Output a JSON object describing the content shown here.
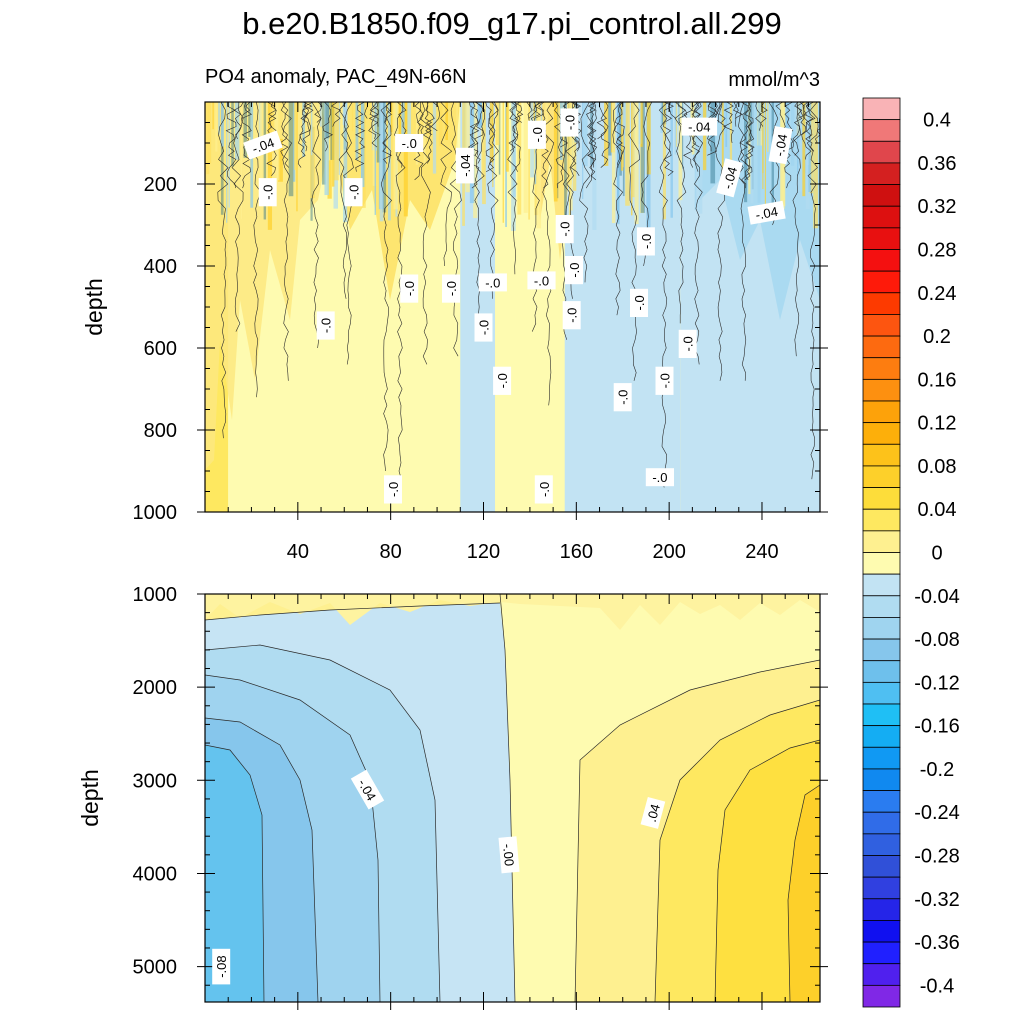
{
  "chart_data": [
    {
      "type": "heatmap",
      "panel": "upper",
      "title": "b.e20.B1850.f09_g17.pi_control.all.299",
      "subtitle_left": "PO4 anomaly, PAC_49N-66N",
      "subtitle_right": "mmol/m^3",
      "xlabel": "",
      "ylabel": "depth",
      "xlim": [
        0,
        265
      ],
      "ylim": [
        1000,
        0
      ],
      "x_ticks": [
        40,
        80,
        120,
        160,
        200,
        240
      ],
      "x_tick_labels": [
        "40",
        "80",
        "120",
        "160",
        "200",
        "240"
      ],
      "y_ticks": [
        200,
        400,
        600,
        800,
        1000
      ],
      "y_tick_labels": [
        "200",
        "400",
        "600",
        "800",
        "1000"
      ],
      "regions": [
        {
          "x_range": [
            0,
            10
          ],
          "anomaly": 0.02
        },
        {
          "x_range": [
            10,
            60
          ],
          "anomaly": 0.01
        },
        {
          "x_range": [
            60,
            110
          ],
          "anomaly": 0.005
        },
        {
          "x_range": [
            110,
            125
          ],
          "anomaly": -0.01
        },
        {
          "x_range": [
            125,
            155
          ],
          "anomaly": 0.005
        },
        {
          "x_range": [
            155,
            205
          ],
          "anomaly": -0.01
        },
        {
          "x_range": [
            205,
            265
          ],
          "anomaly": -0.02
        }
      ],
      "contour_labels": [
        {
          "text": "-.04",
          "x": 25,
          "depth": 105,
          "angle": -20
        },
        {
          "text": "-.0",
          "x": 88,
          "depth": 100,
          "angle": 0
        },
        {
          "text": "-.0",
          "x": 143,
          "depth": 80,
          "angle": -90
        },
        {
          "text": "-.0",
          "x": 157,
          "depth": 50,
          "angle": -90
        },
        {
          "text": "-.04",
          "x": 213,
          "depth": 60,
          "angle": 0
        },
        {
          "text": "-.04",
          "x": 248,
          "depth": 105,
          "angle": -80
        },
        {
          "text": "-.04",
          "x": 112,
          "depth": 155,
          "angle": -90
        },
        {
          "text": "-.04",
          "x": 226,
          "depth": 185,
          "angle": -75
        },
        {
          "text": "-.04",
          "x": 242,
          "depth": 270,
          "angle": -10
        },
        {
          "text": "-.0",
          "x": 27,
          "depth": 220,
          "angle": -90
        },
        {
          "text": "-.0",
          "x": 64,
          "depth": 220,
          "angle": -90
        },
        {
          "text": "-.0",
          "x": 155,
          "depth": 310,
          "angle": -90
        },
        {
          "text": "-.0",
          "x": 190,
          "depth": 340,
          "angle": -90
        },
        {
          "text": "-.0",
          "x": 88,
          "depth": 455,
          "angle": -90
        },
        {
          "text": "-.0",
          "x": 106,
          "depth": 455,
          "angle": -90
        },
        {
          "text": "-.0",
          "x": 124,
          "depth": 440,
          "angle": 0
        },
        {
          "text": "-.0",
          "x": 145,
          "depth": 435,
          "angle": 0
        },
        {
          "text": "-.0",
          "x": 159,
          "depth": 410,
          "angle": -90
        },
        {
          "text": "-.0",
          "x": 187,
          "depth": 490,
          "angle": -90
        },
        {
          "text": "-.0",
          "x": 52,
          "depth": 545,
          "angle": -90
        },
        {
          "text": "-.0",
          "x": 120,
          "depth": 550,
          "angle": -90
        },
        {
          "text": "-.0",
          "x": 158,
          "depth": 520,
          "angle": -90
        },
        {
          "text": "-.0",
          "x": 208,
          "depth": 590,
          "angle": -90
        },
        {
          "text": "-.0",
          "x": 128,
          "depth": 680,
          "angle": -90
        },
        {
          "text": "-.0",
          "x": 198,
          "depth": 680,
          "angle": -90
        },
        {
          "text": "-.0",
          "x": 180,
          "depth": 720,
          "angle": -90
        },
        {
          "text": "-.0",
          "x": 81,
          "depth": 945,
          "angle": -90
        },
        {
          "text": "-.0",
          "x": 146,
          "depth": 945,
          "angle": -90
        },
        {
          "text": "-.0",
          "x": 196,
          "depth": 915,
          "angle": 0
        }
      ]
    },
    {
      "type": "heatmap",
      "panel": "lower",
      "xlabel": "",
      "ylabel": "depth",
      "xlim": [
        0,
        265
      ],
      "ylim": [
        5380,
        1000
      ],
      "x_ticks": [
        40,
        80,
        120,
        160,
        200,
        240
      ],
      "y_ticks": [
        1000,
        2000,
        3000,
        4000,
        5000
      ],
      "y_tick_labels": [
        "1000",
        "2000",
        "3000",
        "4000",
        "5000"
      ],
      "field": "zonal gradient: about -0.09 at x=0 rising through 0 near x=130 to about +0.09 at x=265, weaker near 1000 m",
      "contour_labels": [
        {
          "text": "-.04",
          "x": 70,
          "depth": 3100,
          "angle": 60
        },
        {
          "text": "-.00",
          "x": 131,
          "depth": 3800,
          "angle": 85
        },
        {
          "text": ".04",
          "x": 193,
          "depth": 3350,
          "angle": -75
        },
        {
          "text": "-.08",
          "x": 7,
          "depth": 5000,
          "angle": -90
        }
      ]
    },
    {
      "type": "colorbar",
      "levels": [
        -0.42,
        -0.4,
        -0.38,
        -0.36,
        -0.34,
        -0.32,
        -0.3,
        -0.28,
        -0.26,
        -0.24,
        -0.22,
        -0.2,
        -0.18,
        -0.16,
        -0.14,
        -0.12,
        -0.1,
        -0.08,
        -0.06,
        -0.04,
        -0.02,
        0,
        0.02,
        0.04,
        0.06,
        0.08,
        0.1,
        0.12,
        0.14,
        0.16,
        0.18,
        0.2,
        0.22,
        0.24,
        0.26,
        0.28,
        0.3,
        0.32,
        0.34,
        0.36,
        0.38,
        0.4,
        0.42
      ],
      "tick_labels": [
        "0.4",
        "0.36",
        "0.32",
        "0.28",
        "0.24",
        "0.2",
        "0.16",
        "0.12",
        "0.08",
        "0.04",
        "0",
        "-0.04",
        "-0.08",
        "-0.12",
        "-0.16",
        "-0.2",
        "-0.24",
        "-0.28",
        "-0.32",
        "-0.36",
        "-0.4"
      ],
      "tick_values": [
        0.4,
        0.36,
        0.32,
        0.28,
        0.24,
        0.2,
        0.16,
        0.12,
        0.08,
        0.04,
        0,
        -0.04,
        -0.08,
        -0.12,
        -0.16,
        -0.2,
        -0.24,
        -0.28,
        -0.32,
        -0.36,
        -0.4
      ],
      "colors_top_to_bottom": [
        "#f9b3b6",
        "#f07878",
        "#e0464c",
        "#d42020",
        "#cf1010",
        "#dd1010",
        "#e81010",
        "#f41010",
        "#fe1a0a",
        "#fd3a00",
        "#fd5510",
        "#fd6a10",
        "#fd7d10",
        "#fd9010",
        "#fda20a",
        "#fdaf0a",
        "#fdc21a",
        "#fdd02a",
        "#fddd3a",
        "#fee860",
        "#fef090",
        "#fefbb0",
        "#c2e3f3",
        "#b0dcf1",
        "#9fd4ef",
        "#86c6ec",
        "#6ec0ec",
        "#4fbff2",
        "#1fbff5",
        "#14adf3",
        "#1099f3",
        "#1089f0",
        "#2a7cf0",
        "#306ce8",
        "#3060e0",
        "#3050d8",
        "#3040e0",
        "#2525e8",
        "#1010f0",
        "#2020ff",
        "#5020ee",
        "#8028e6"
      ]
    }
  ]
}
